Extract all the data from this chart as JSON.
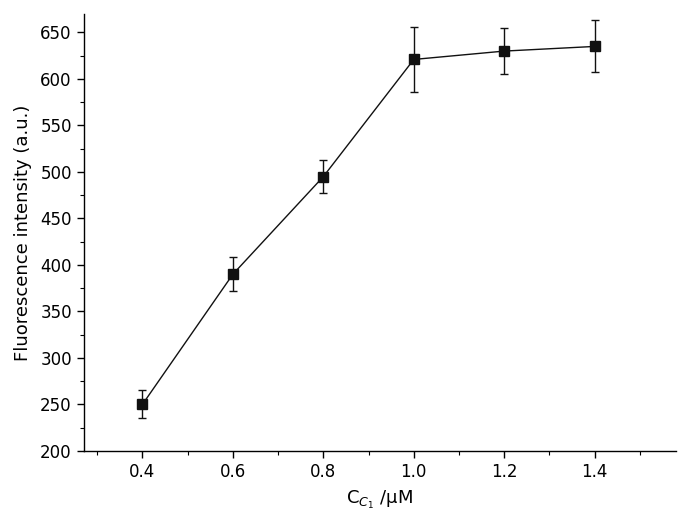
{
  "x": [
    0.4,
    0.6,
    0.8,
    1.0,
    1.2,
    1.4
  ],
  "y": [
    250,
    390,
    495,
    621,
    630,
    635
  ],
  "yerr": [
    15,
    18,
    18,
    35,
    25,
    28
  ],
  "xlabel": "C$_{C_{1}}$ /μM",
  "ylabel": "Fluorescence intensity (a.u.)",
  "xlim": [
    0.27,
    1.58
  ],
  "ylim": [
    200,
    670
  ],
  "yticks": [
    200,
    250,
    300,
    350,
    400,
    450,
    500,
    550,
    600,
    650
  ],
  "xticks": [
    0.4,
    0.6,
    0.8,
    1.0,
    1.2,
    1.4
  ],
  "marker_color": "#111111",
  "line_color": "#111111",
  "marker_size": 7,
  "line_width": 1.0,
  "capsize": 3,
  "elinewidth": 1.0,
  "background_color": "#ffffff",
  "tick_labelsize": 12,
  "label_fontsize": 13
}
